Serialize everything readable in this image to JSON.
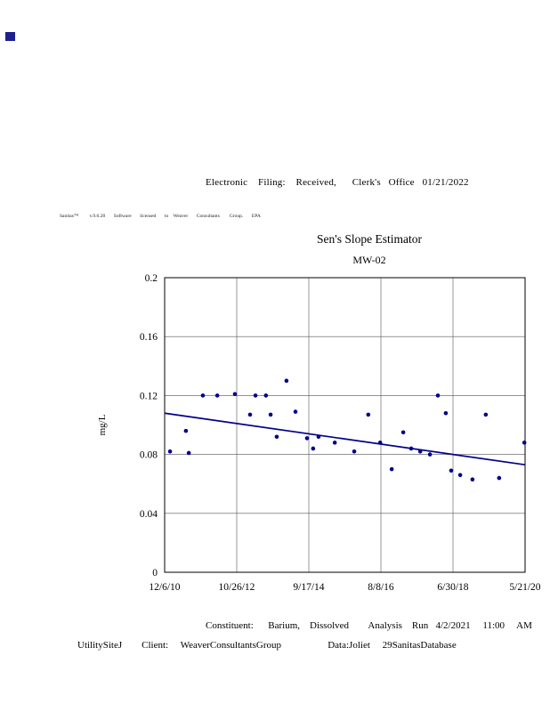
{
  "page": {
    "filing_header": "Electronic    Filing:    Received,      Clerk's   Office   01/21/2022",
    "license_line": "Sanitas™         v.9.6.28       Software       licensed       to    Weaver       Consultants        Group.       EPA",
    "corner_marker_color": "#1f1f8f"
  },
  "chart_data": {
    "type": "scatter",
    "title": "Sen's Slope Estimator",
    "subtitle": "MW-02",
    "ylabel": "mg/L",
    "ylim": [
      0,
      0.2
    ],
    "yticks": [
      0,
      0.04,
      0.08,
      0.12,
      0.16,
      0.2
    ],
    "xtick_labels": [
      "12/6/10",
      "10/26/12",
      "9/17/14",
      "8/8/16",
      "6/30/18",
      "5/21/20"
    ],
    "grid": true,
    "point_color": "#00008b",
    "line_color": "#00008b",
    "points": [
      [
        0.015,
        0.082
      ],
      [
        0.059,
        0.096
      ],
      [
        0.067,
        0.081
      ],
      [
        0.106,
        0.12
      ],
      [
        0.146,
        0.12
      ],
      [
        0.195,
        0.121
      ],
      [
        0.237,
        0.107
      ],
      [
        0.252,
        0.12
      ],
      [
        0.281,
        0.12
      ],
      [
        0.294,
        0.107
      ],
      [
        0.311,
        0.092
      ],
      [
        0.338,
        0.13
      ],
      [
        0.363,
        0.109
      ],
      [
        0.395,
        0.091
      ],
      [
        0.412,
        0.084
      ],
      [
        0.427,
        0.092
      ],
      [
        0.472,
        0.088
      ],
      [
        0.526,
        0.082
      ],
      [
        0.565,
        0.107
      ],
      [
        0.598,
        0.088
      ],
      [
        0.63,
        0.07
      ],
      [
        0.662,
        0.095
      ],
      [
        0.684,
        0.084
      ],
      [
        0.709,
        0.082
      ],
      [
        0.736,
        0.08
      ],
      [
        0.758,
        0.12
      ],
      [
        0.78,
        0.108
      ],
      [
        0.795,
        0.069
      ],
      [
        0.82,
        0.066
      ],
      [
        0.854,
        0.063
      ],
      [
        0.891,
        0.107
      ],
      [
        0.928,
        0.064
      ],
      [
        0.998,
        0.088
      ]
    ],
    "trend": {
      "x": [
        0,
        1
      ],
      "y": [
        0.108,
        0.073
      ]
    }
  },
  "footer": {
    "line1": "Constituent:      Barium,    Dissolved        Analysis    Run   4/2/2021     11:00     AM",
    "line2": "UtilitySiteJ        Client:     WeaverConsultantsGroup                   Data:Joliet     29SanitasDatabase"
  }
}
